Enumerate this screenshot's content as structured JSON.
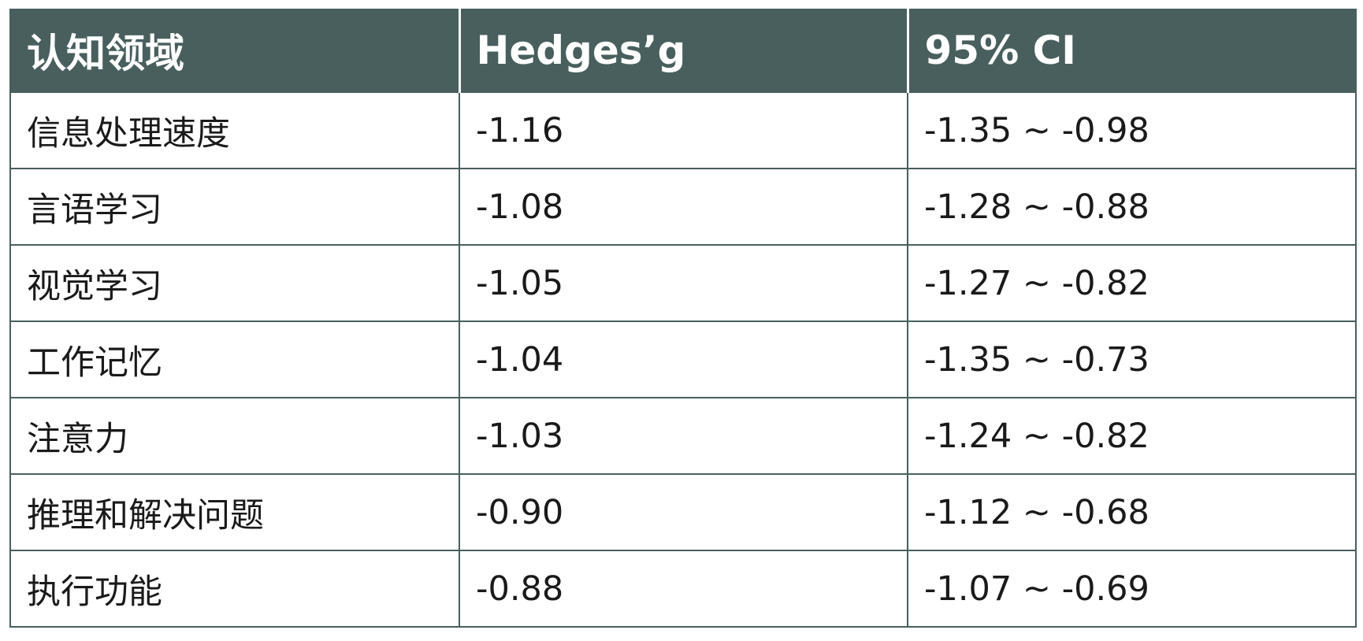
{
  "table": {
    "columns": [
      "认知领域",
      "Hedges’g",
      "95% CI"
    ],
    "rows": [
      [
        "信息处理速度",
        "-1.16",
        "-1.35 ~ -0.98"
      ],
      [
        "言语学习",
        "-1.08",
        "-1.28 ~ -0.88"
      ],
      [
        "视觉学习",
        "-1.05",
        "-1.27 ~ -0.82"
      ],
      [
        "工作记忆",
        "-1.04",
        "-1.35 ~ -0.73"
      ],
      [
        "注意力",
        "-1.03",
        "-1.24 ~ -0.82"
      ],
      [
        "推理和解决问题",
        "-0.90",
        "-1.12 ~ -0.68"
      ],
      [
        "执行功能",
        "-0.88",
        "-1.07 ~ -0.69"
      ]
    ],
    "header_color": "#485f5e",
    "border_color": "#485f5e"
  }
}
